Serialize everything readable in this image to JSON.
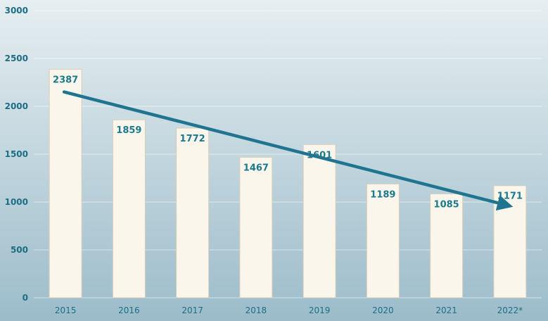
{
  "colors": {
    "background_top": "#e6eef1",
    "background_bottom": "#9cbcca",
    "bar_fill": "#fbf6ec",
    "bar_stroke": "#d9cdb8",
    "label_color": "#1b7a8d",
    "tick_color": "#1b6e84",
    "arrow_color": "#1f7590",
    "grid_color": "#ffffff"
  },
  "chart_data": {
    "type": "bar",
    "categories": [
      "2015",
      "2016",
      "2017",
      "2018",
      "2019",
      "2020",
      "2021",
      "2022*"
    ],
    "series": [
      {
        "values": [
          2387,
          1859,
          1772,
          1467,
          1601,
          1189,
          1085,
          1171
        ]
      }
    ],
    "data_labels": [
      "2387",
      "1859",
      "1772",
      "1467",
      "1601",
      "1189",
      "1085",
      "1171"
    ],
    "y_ticks": [
      "0",
      "500",
      "1000",
      "1500",
      "2000",
      "2500",
      "3000"
    ],
    "ylim": [
      0,
      3000
    ],
    "grid": true,
    "legend": "none",
    "annotations": [
      {
        "type": "trend-arrow",
        "from": {
          "x": "2015",
          "y": 2150
        },
        "to": {
          "x": "2022*",
          "y": 970
        }
      }
    ]
  }
}
